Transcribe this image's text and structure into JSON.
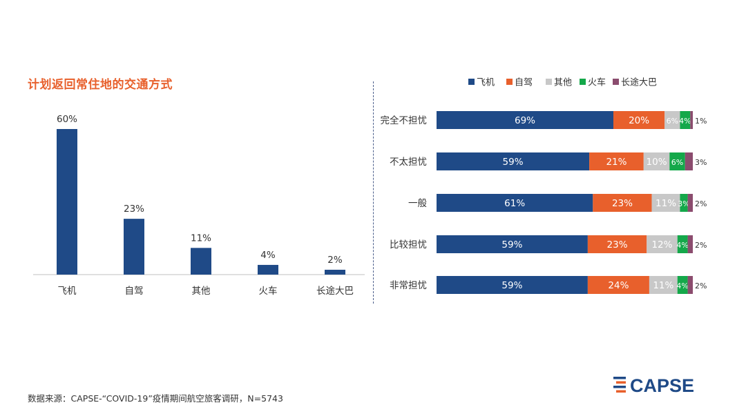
{
  "source_note": "数据来源：CAPSE-“COVID-19”疫情期间航空旅客调研，N=5743",
  "logo_text": "CAPSE",
  "colors": {
    "navy": "#1F4A87",
    "orange": "#E8602C",
    "gray": "#C8C8C8",
    "green": "#14A84A",
    "purple": "#8B4C6E",
    "title": "#E8602C"
  },
  "chart_data": [
    {
      "type": "bar",
      "title": "计划返回常住地的交通方式",
      "categories": [
        "飞机",
        "自驾",
        "其他",
        "火车",
        "长途大巴"
      ],
      "values": [
        60,
        23,
        11,
        4,
        2
      ],
      "value_labels": [
        "60%",
        "23%",
        "11%",
        "4%",
        "2%"
      ],
      "ylim": [
        0,
        60
      ],
      "grid": false,
      "color": "#1F4A87"
    },
    {
      "type": "bar",
      "orientation": "horizontal",
      "stacked": true,
      "categories": [
        "完全不担忧",
        "不太担忧",
        "一般",
        "比较担忧",
        "非常担忧"
      ],
      "legend_position": "top",
      "xlim": [
        0,
        100
      ],
      "grid": false,
      "series": [
        {
          "name": "飞机",
          "color": "#1F4A87",
          "values": [
            69,
            59,
            61,
            59,
            59
          ],
          "labels": [
            "69%",
            "59%",
            "61%",
            "59%",
            "59%"
          ]
        },
        {
          "name": "自驾",
          "color": "#E8602C",
          "values": [
            20,
            21,
            23,
            23,
            24
          ],
          "labels": [
            "20%",
            "21%",
            "23%",
            "23%",
            "24%"
          ]
        },
        {
          "name": "其他",
          "color": "#C8C8C8",
          "values": [
            6,
            10,
            11,
            12,
            11
          ],
          "labels": [
            "6%",
            "10%",
            "11%",
            "12%",
            "11%"
          ]
        },
        {
          "name": "火车",
          "color": "#14A84A",
          "values": [
            4,
            6,
            3,
            4,
            4
          ],
          "labels": [
            "4%",
            "6%",
            "3%",
            "4%",
            "4%"
          ]
        },
        {
          "name": "长途大巴",
          "color": "#8B4C6E",
          "values": [
            1,
            3,
            2,
            2,
            2
          ],
          "labels": [
            "1%",
            "3%",
            "2%",
            "2%",
            "2%"
          ]
        }
      ]
    }
  ]
}
